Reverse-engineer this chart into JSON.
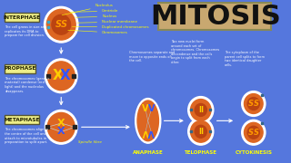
{
  "bg_color": "#5577dd",
  "title": "MITOSIS",
  "title_box_color": "#c8a870",
  "title_text_color": "#111111",
  "phase_label_bg": "#eeee88",
  "phase_label_border": "#555533",
  "cell_outer_color": "#ffffff",
  "cell_inner_color": "#dd6622",
  "nucleus_color": "#bb4411",
  "nucleus2_color": "#cc5522",
  "chrom_gold": "#ffcc00",
  "chrom_blue": "#3355ff",
  "chrom_orange": "#ff8800",
  "label_color": "#ffff00",
  "desc_color": "#ffffff",
  "arrow_color": "#ffffff",
  "dot_color": "#336688",
  "phases_left": [
    "INTERPHASE",
    "PROPHASE",
    "METAPHASE"
  ],
  "phases_bottom": [
    "ANAPHASE",
    "TELOPHASE",
    "CYTOKINESIS"
  ],
  "nucleolus_label": "Nucleolus",
  "centriole_label": "Centriole",
  "nucleus_label": "Nucleus",
  "nuclear_membrane_label": "Nuclear membrane",
  "duplicated_chrom_label": "Duplicated chromosomes",
  "chromosomes_label": "Chromosomes",
  "spindle_label": "Spindle fibre",
  "interphase_desc": "The cell grows in size and\nreplicates its DNA to\nprepare for cell division.",
  "prophase_desc": "The chromosomes (genetic\nmaterial) condense (red\nlight) and the nucleolus\ndisappears.",
  "metaphase_desc": "The chromosomes align in\nthe centre of the cell and\nattach to microtubules in\npreparation to split apart.",
  "anaphase_desc": "Chromosomes separate and\nmove to opposite ends of\nthe cell.",
  "telophase_desc": "Two new nuclei form\naround each set of\nchromosomes. Chromosomes\ndecondense and the cells\nbegin to split from each\nother.",
  "cytokinesis_desc": "The cytoplasm of the\nparent cell splits to form\ntwo identical daughter\ncells."
}
